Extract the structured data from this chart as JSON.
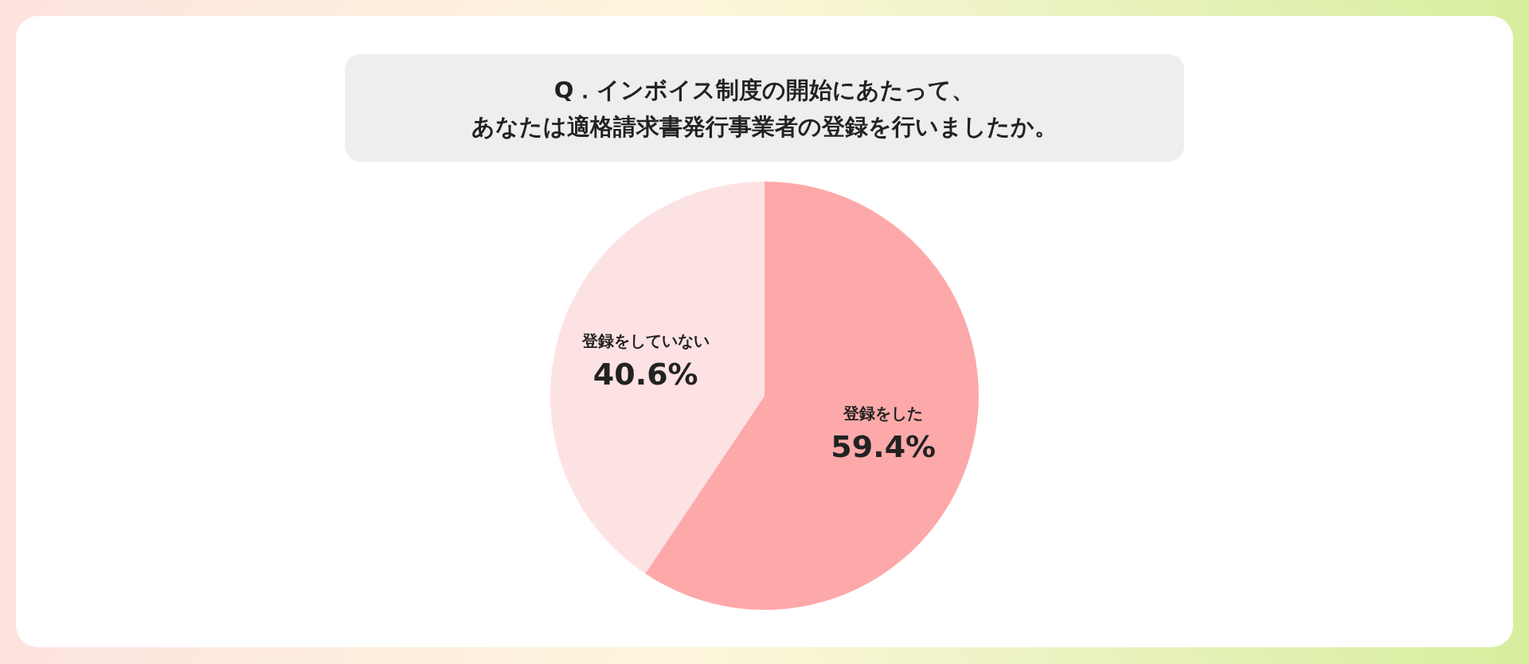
{
  "chart_data": {
    "type": "pie",
    "title": "Q．インボイス制度の開始にあたって、",
    "subtitle": "あなたは適格請求書発行事業者の登録を行いましたか。",
    "categories": [
      "登録をした",
      "登録をしていない"
    ],
    "values": [
      59.4,
      40.6
    ],
    "colors": [
      "#fda9aa",
      "#fde2e4"
    ],
    "value_labels": [
      "59.4%",
      "40.6%"
    ],
    "legend": false
  }
}
